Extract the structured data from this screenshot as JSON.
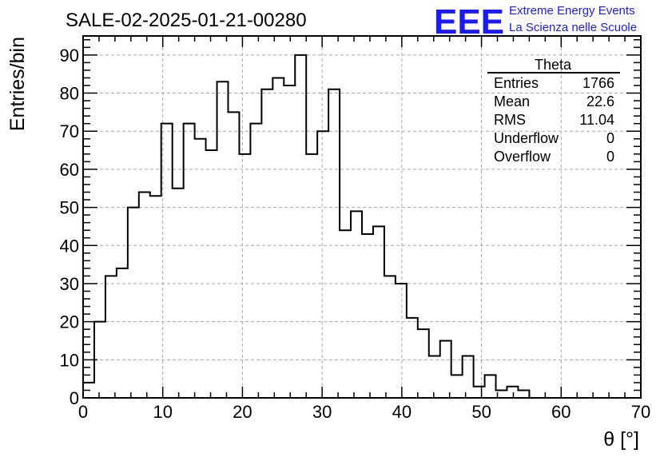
{
  "chart_data": {
    "type": "histogram",
    "title": "SALE-02-2025-01-21-00280",
    "xlabel": "θ [°]",
    "ylabel": "Entries/bin",
    "xlim": [
      0,
      70
    ],
    "ylim": [
      0,
      95
    ],
    "bin_width": 1.4,
    "x_ticks": [
      0,
      10,
      20,
      30,
      40,
      50,
      60,
      70
    ],
    "y_ticks": [
      0,
      10,
      20,
      30,
      40,
      50,
      60,
      70,
      80,
      90
    ],
    "grid": true,
    "values": [
      4,
      20,
      32,
      34,
      50,
      54,
      53,
      72,
      55,
      72,
      68,
      65,
      83,
      75,
      64,
      72,
      81,
      84,
      82,
      90,
      64,
      70,
      81,
      44,
      49,
      43,
      45,
      32,
      30,
      21,
      18,
      11,
      15,
      6,
      11,
      3,
      6,
      2,
      3,
      2,
      0,
      0,
      0,
      0,
      0,
      0,
      0,
      0,
      0,
      0
    ],
    "stats": {
      "name": "Theta",
      "rows": [
        {
          "label": "Entries",
          "value": "1766"
        },
        {
          "label": "Mean",
          "value": "22.6"
        },
        {
          "label": "RMS",
          "value": "11.04"
        },
        {
          "label": "Underflow",
          "value": "0"
        },
        {
          "label": "Overflow",
          "value": "0"
        }
      ]
    }
  },
  "logo": {
    "text": "EEE",
    "line1": "Extreme Energy Events",
    "line2": "La Scienza nelle Scuole"
  },
  "colors": {
    "logo": "#1a1aff",
    "line": "#000000",
    "grid": "#aaaaaa"
  }
}
